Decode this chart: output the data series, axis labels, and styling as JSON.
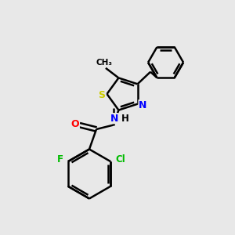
{
  "bg_color": "#e8e8e8",
  "bond_color": "#000000",
  "bond_width": 1.8,
  "atom_colors": {
    "S": "#cccc00",
    "N": "#0000ff",
    "O": "#ff0000",
    "F": "#00bb00",
    "Cl": "#00bb00",
    "C": "#000000",
    "H": "#000000"
  },
  "figsize": [
    3.0,
    3.0
  ],
  "dpi": 100
}
